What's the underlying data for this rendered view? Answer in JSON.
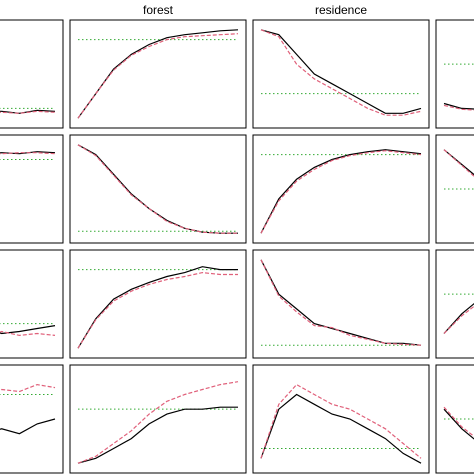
{
  "chart_data": [
    {
      "type": "line",
      "x": [
        1,
        2,
        3,
        4,
        5,
        6,
        7,
        8,
        9,
        10
      ],
      "xlim": [
        1,
        10
      ],
      "ylim": [
        -0.05,
        1.05
      ],
      "hline": 0.15,
      "series": [
        {
          "color": "#000000",
          "values": [
            0.05,
            0.06,
            0.08,
            0.1,
            0.1,
            0.12,
            0.12,
            0.1,
            0.13,
            0.12
          ]
        },
        {
          "color": "#e0607a",
          "values": [
            0.05,
            0.06,
            0.07,
            0.09,
            0.1,
            0.1,
            0.11,
            0.1,
            0.12,
            0.11
          ]
        }
      ]
    },
    {
      "type": "line",
      "title": "forest",
      "x": [
        1,
        2,
        3,
        4,
        5,
        6,
        7,
        8,
        9,
        10
      ],
      "xlim": [
        1,
        10
      ],
      "ylim": [
        -0.05,
        1.05
      ],
      "hline": 0.85,
      "series": [
        {
          "color": "#000000",
          "values": [
            0.05,
            0.3,
            0.55,
            0.7,
            0.8,
            0.87,
            0.9,
            0.92,
            0.94,
            0.95
          ]
        },
        {
          "color": "#e0607a",
          "values": [
            0.05,
            0.3,
            0.54,
            0.69,
            0.78,
            0.85,
            0.88,
            0.89,
            0.9,
            0.91
          ]
        }
      ]
    },
    {
      "type": "line",
      "title": "residence",
      "x": [
        1,
        2,
        3,
        4,
        5,
        6,
        7,
        8,
        9,
        10
      ],
      "xlim": [
        1,
        10
      ],
      "ylim": [
        -0.05,
        1.05
      ],
      "hline": 0.3,
      "series": [
        {
          "color": "#000000",
          "values": [
            0.95,
            0.9,
            0.7,
            0.5,
            0.4,
            0.3,
            0.2,
            0.1,
            0.1,
            0.15
          ]
        },
        {
          "color": "#e0607a",
          "values": [
            0.95,
            0.88,
            0.6,
            0.45,
            0.35,
            0.25,
            0.15,
            0.08,
            0.08,
            0.12
          ]
        }
      ]
    },
    {
      "type": "line",
      "x": [
        1,
        2,
        3,
        4,
        5,
        6,
        7,
        8,
        9,
        10
      ],
      "xlim": [
        1,
        10
      ],
      "ylim": [
        -0.05,
        1.05
      ],
      "hline": 0.6,
      "series": [
        {
          "color": "#000000",
          "values": [
            0.2,
            0.15,
            0.14,
            0.13,
            0.12,
            0.12,
            0.11,
            0.1,
            0.1,
            0.1
          ]
        },
        {
          "color": "#e0607a",
          "values": [
            0.18,
            0.14,
            0.13,
            0.12,
            0.11,
            0.11,
            0.1,
            0.1,
            0.09,
            0.09
          ]
        }
      ]
    },
    {
      "type": "line",
      "x": [
        1,
        2,
        3,
        4,
        5,
        6,
        7,
        8,
        9,
        10
      ],
      "xlim": [
        1,
        10
      ],
      "ylim": [
        -0.05,
        1.05
      ],
      "hline": 0.8,
      "series": [
        {
          "color": "#000000",
          "values": [
            0.8,
            0.82,
            0.85,
            0.83,
            0.86,
            0.85,
            0.87,
            0.86,
            0.88,
            0.87
          ]
        },
        {
          "color": "#e0607a",
          "values": [
            0.8,
            0.81,
            0.84,
            0.84,
            0.85,
            0.86,
            0.86,
            0.87,
            0.87,
            0.86
          ]
        }
      ]
    },
    {
      "type": "line",
      "x": [
        1,
        2,
        3,
        4,
        5,
        6,
        7,
        8,
        9,
        10
      ],
      "xlim": [
        1,
        10
      ],
      "ylim": [
        -0.05,
        1.05
      ],
      "hline": 0.07,
      "series": [
        {
          "color": "#000000",
          "values": [
            0.95,
            0.85,
            0.65,
            0.45,
            0.3,
            0.18,
            0.1,
            0.06,
            0.05,
            0.05
          ]
        },
        {
          "color": "#e0607a",
          "values": [
            0.95,
            0.84,
            0.64,
            0.44,
            0.3,
            0.17,
            0.1,
            0.06,
            0.05,
            0.05
          ]
        }
      ]
    },
    {
      "type": "line",
      "x": [
        1,
        2,
        3,
        4,
        5,
        6,
        7,
        8,
        9,
        10
      ],
      "xlim": [
        1,
        10
      ],
      "ylim": [
        -0.05,
        1.05
      ],
      "hline": 0.85,
      "series": [
        {
          "color": "#000000",
          "values": [
            0.05,
            0.4,
            0.6,
            0.72,
            0.8,
            0.85,
            0.88,
            0.9,
            0.88,
            0.86
          ]
        },
        {
          "color": "#e0607a",
          "values": [
            0.05,
            0.38,
            0.58,
            0.7,
            0.79,
            0.84,
            0.87,
            0.89,
            0.87,
            0.85
          ]
        }
      ]
    },
    {
      "type": "line",
      "x": [
        1,
        2,
        3,
        4,
        5,
        6,
        7,
        8,
        9,
        10
      ],
      "xlim": [
        1,
        10
      ],
      "ylim": [
        -0.05,
        1.05
      ],
      "hline": 0.5,
      "series": [
        {
          "color": "#000000",
          "values": [
            0.9,
            0.75,
            0.6,
            0.5,
            0.42,
            0.38,
            0.35,
            0.33,
            0.32,
            0.3
          ]
        },
        {
          "color": "#e0607a",
          "values": [
            0.9,
            0.74,
            0.58,
            0.48,
            0.4,
            0.37,
            0.34,
            0.32,
            0.31,
            0.3
          ]
        }
      ]
    },
    {
      "type": "line",
      "x": [
        1,
        2,
        3,
        4,
        5,
        6,
        7,
        8,
        9,
        10
      ],
      "xlim": [
        1,
        10
      ],
      "ylim": [
        -0.05,
        1.05
      ],
      "hline": 0.3,
      "series": [
        {
          "color": "#000000",
          "values": [
            0.15,
            0.2,
            0.12,
            0.2,
            0.15,
            0.25,
            0.2,
            0.22,
            0.25,
            0.28
          ]
        },
        {
          "color": "#e0607a",
          "values": [
            0.2,
            0.15,
            0.18,
            0.15,
            0.2,
            0.15,
            0.22,
            0.18,
            0.2,
            0.18
          ]
        }
      ]
    },
    {
      "type": "line",
      "x": [
        1,
        2,
        3,
        4,
        5,
        6,
        7,
        8,
        9,
        10
      ],
      "xlim": [
        1,
        10
      ],
      "ylim": [
        -0.05,
        1.05
      ],
      "hline": 0.85,
      "series": [
        {
          "color": "#000000",
          "values": [
            0.05,
            0.35,
            0.55,
            0.65,
            0.72,
            0.78,
            0.82,
            0.88,
            0.85,
            0.85
          ]
        },
        {
          "color": "#e0607a",
          "values": [
            0.05,
            0.34,
            0.53,
            0.63,
            0.7,
            0.75,
            0.78,
            0.82,
            0.8,
            0.8
          ]
        }
      ]
    },
    {
      "type": "line",
      "x": [
        1,
        2,
        3,
        4,
        5,
        6,
        7,
        8,
        9,
        10
      ],
      "xlim": [
        1,
        10
      ],
      "ylim": [
        -0.05,
        1.05
      ],
      "hline": 0.08,
      "series": [
        {
          "color": "#000000",
          "values": [
            0.95,
            0.6,
            0.45,
            0.3,
            0.25,
            0.2,
            0.15,
            0.1,
            0.1,
            0.08
          ]
        },
        {
          "color": "#e0607a",
          "values": [
            0.95,
            0.58,
            0.42,
            0.28,
            0.26,
            0.18,
            0.14,
            0.1,
            0.09,
            0.08
          ]
        }
      ]
    },
    {
      "type": "line",
      "x": [
        1,
        2,
        3,
        4,
        5,
        6,
        7,
        8,
        9,
        10
      ],
      "xlim": [
        1,
        10
      ],
      "ylim": [
        -0.05,
        1.05
      ],
      "hline": 0.6,
      "series": [
        {
          "color": "#000000",
          "values": [
            0.2,
            0.4,
            0.55,
            0.6,
            0.62,
            0.65,
            0.66,
            0.68,
            0.68,
            0.7
          ]
        },
        {
          "color": "#e0607a",
          "values": [
            0.2,
            0.38,
            0.52,
            0.58,
            0.6,
            0.62,
            0.64,
            0.65,
            0.66,
            0.67
          ]
        }
      ]
    },
    {
      "type": "line",
      "x": [
        1,
        2,
        3,
        4,
        5,
        6,
        7,
        8,
        9,
        10
      ],
      "xlim": [
        1,
        10
      ],
      "ylim": [
        -0.05,
        1.05
      ],
      "hline": 0.75,
      "series": [
        {
          "color": "#000000",
          "values": [
            0.4,
            0.3,
            0.35,
            0.3,
            0.45,
            0.35,
            0.4,
            0.35,
            0.45,
            0.5
          ]
        },
        {
          "color": "#e0607a",
          "values": [
            0.7,
            0.65,
            0.75,
            0.7,
            0.8,
            0.75,
            0.8,
            0.78,
            0.85,
            0.82
          ]
        }
      ]
    },
    {
      "type": "line",
      "x": [
        1,
        2,
        3,
        4,
        5,
        6,
        7,
        8,
        9,
        10
      ],
      "xlim": [
        1,
        10
      ],
      "ylim": [
        -0.05,
        1.05
      ],
      "hline": 0.6,
      "series": [
        {
          "color": "#000000",
          "values": [
            0.05,
            0.1,
            0.2,
            0.3,
            0.45,
            0.55,
            0.6,
            0.6,
            0.62,
            0.62
          ]
        },
        {
          "color": "#e0607a",
          "values": [
            0.05,
            0.12,
            0.25,
            0.38,
            0.55,
            0.68,
            0.75,
            0.8,
            0.85,
            0.88
          ]
        }
      ]
    },
    {
      "type": "line",
      "x": [
        1,
        2,
        3,
        4,
        5,
        6,
        7,
        8,
        9,
        10
      ],
      "xlim": [
        1,
        10
      ],
      "ylim": [
        -0.05,
        1.05
      ],
      "hline": 0.2,
      "series": [
        {
          "color": "#000000",
          "values": [
            0.1,
            0.6,
            0.75,
            0.65,
            0.55,
            0.5,
            0.4,
            0.3,
            0.15,
            0.05
          ]
        },
        {
          "color": "#e0607a",
          "values": [
            0.1,
            0.65,
            0.85,
            0.75,
            0.65,
            0.6,
            0.5,
            0.4,
            0.25,
            0.1
          ]
        }
      ]
    },
    {
      "type": "line",
      "x": [
        1,
        2,
        3,
        4,
        5,
        6,
        7,
        8,
        9,
        10
      ],
      "xlim": [
        1,
        10
      ],
      "ylim": [
        -0.05,
        1.05
      ],
      "hline": 0.5,
      "series": [
        {
          "color": "#000000",
          "values": [
            0.6,
            0.4,
            0.25,
            0.2,
            0.18,
            0.15,
            0.15,
            0.12,
            0.12,
            0.1
          ]
        },
        {
          "color": "#e0607a",
          "values": [
            0.62,
            0.42,
            0.28,
            0.22,
            0.2,
            0.17,
            0.16,
            0.14,
            0.13,
            0.12
          ]
        }
      ]
    }
  ]
}
